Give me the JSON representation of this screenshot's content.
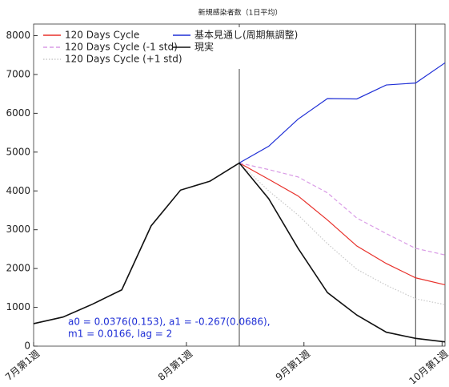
{
  "chart_data": {
    "type": "line",
    "title": "新規感染者数（1日平均）",
    "x": [
      0,
      1,
      2,
      3,
      4,
      5,
      6,
      7,
      8,
      9,
      10,
      11,
      12,
      13,
      14
    ],
    "xlim": [
      0,
      14
    ],
    "ylim": [
      0,
      8300
    ],
    "xticks": [
      {
        "value": 0,
        "label": "7月第1週"
      },
      {
        "value": 5.2,
        "label": "8月第1週"
      },
      {
        "value": 9.2,
        "label": "9月第1週"
      },
      {
        "value": 13.9,
        "label": "10月第1週"
      }
    ],
    "yticks": [
      0,
      1000,
      2000,
      3000,
      4000,
      5000,
      6000,
      7000,
      8000
    ],
    "grid": false,
    "vlines": [
      7,
      13
    ],
    "series": [
      {
        "name": "120 Days Cycle",
        "color": "#e8302a",
        "dash": "",
        "values": [
          null,
          null,
          null,
          null,
          null,
          null,
          null,
          4720,
          4300,
          3870,
          3250,
          2580,
          2130,
          1760,
          1580
        ]
      },
      {
        "name": "120 Days Cycle (-1 std)",
        "color": "#d99be6",
        "dash": "5,3",
        "values": [
          null,
          null,
          null,
          null,
          null,
          null,
          null,
          4720,
          4550,
          4360,
          3950,
          3300,
          2900,
          2520,
          2350
        ]
      },
      {
        "name": "120 Days Cycle (+1 std)",
        "color": "#c8c8c8",
        "dash": "1.5,2",
        "values": [
          null,
          null,
          null,
          null,
          null,
          null,
          null,
          4720,
          4000,
          3380,
          2640,
          1980,
          1570,
          1220,
          1070
        ]
      },
      {
        "name": "基本見通し(周期無調整)",
        "color": "#1f2fd6",
        "dash": "",
        "values": [
          null,
          null,
          null,
          null,
          null,
          null,
          null,
          4720,
          5150,
          5850,
          6380,
          6370,
          6730,
          6780,
          7300
        ]
      },
      {
        "name": "現実",
        "color": "#111111",
        "dash": "",
        "values": [
          580,
          750,
          1080,
          1450,
          3100,
          4020,
          4250,
          4720,
          3800,
          2520,
          1380,
          800,
          360,
          200,
          110
        ]
      }
    ],
    "annotation": [
      "a0 = 0.0376(0.153), a1 = -0.267(0.0686),",
      "m1 = 0.0166, lag = 2"
    ]
  }
}
